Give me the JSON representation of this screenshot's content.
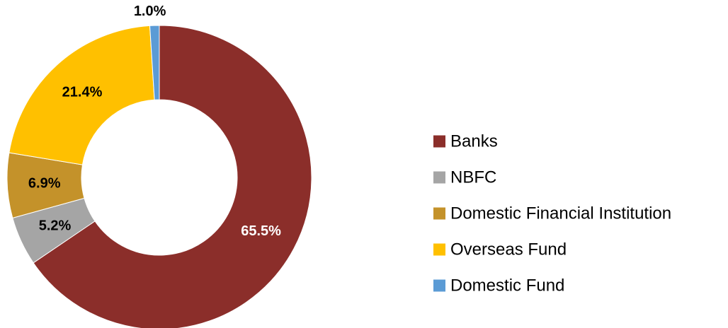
{
  "chart_data": {
    "type": "pie",
    "variant": "donut",
    "title": "",
    "legend_position": "right",
    "start_angle_deg": 0,
    "direction": "clockwise",
    "slices": [
      {
        "name": "Banks",
        "value": 65.5,
        "label": "65.5%",
        "color": "#8B2E2A",
        "label_color": "#ffffff"
      },
      {
        "name": "NBFC",
        "value": 5.2,
        "label": "5.2%",
        "color": "#A5A5A5",
        "label_color": "#000000"
      },
      {
        "name": "Domestic Financial Institution",
        "value": 6.9,
        "label": "6.9%",
        "color": "#C4922A",
        "label_color": "#000000"
      },
      {
        "name": "Overseas Fund",
        "value": 21.4,
        "label": "21.4%",
        "color": "#FFC000",
        "label_color": "#000000"
      },
      {
        "name": "Domestic Fund",
        "value": 1.0,
        "label": "1.0%",
        "color": "#5B9BD5",
        "label_color": "#000000"
      }
    ]
  }
}
